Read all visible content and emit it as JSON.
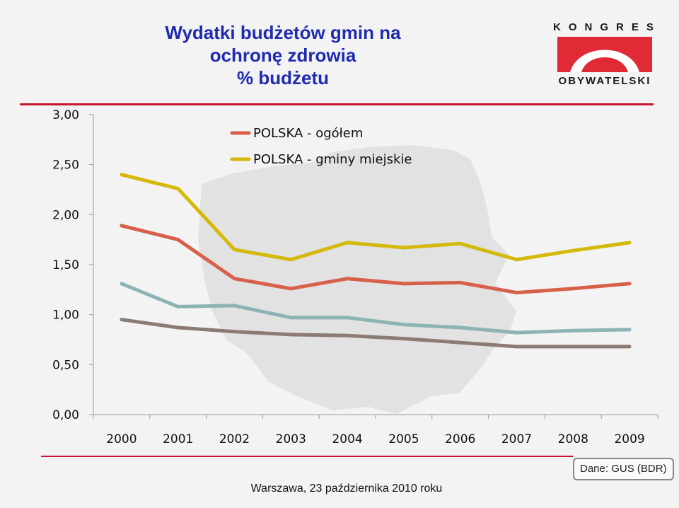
{
  "slide": {
    "title_lines": [
      "Wydatki budżetów gmin na",
      "ochronę zdrowia",
      "% budżetu"
    ],
    "logo": {
      "top_text": "KONGRES",
      "bottom_text": "OBYWATELSKI"
    },
    "source": "Dane: GUS (BDR)",
    "footer": "Warszawa, 23 października 2010 roku"
  },
  "colors": {
    "title": "#1f2bb0",
    "rule": "#c8172c",
    "logo_red": "#e02a36"
  },
  "chart_data": {
    "type": "line",
    "title": "Wydatki budżetów gmin na ochronę zdrowia % budżetu",
    "x": [
      "2000",
      "2001",
      "2002",
      "2003",
      "2004",
      "2005",
      "2006",
      "2007",
      "2008",
      "2009"
    ],
    "ylim": [
      0,
      3
    ],
    "yticks": [
      "0,00",
      "0,50",
      "1,00",
      "1,50",
      "2,00",
      "2,50",
      "3,00"
    ],
    "ytick_values": [
      0,
      0.5,
      1,
      1.5,
      2,
      2.5,
      3
    ],
    "xlabel": "",
    "ylabel": "",
    "legend_position": "top",
    "series": [
      {
        "name": "POLSKA - ogółem",
        "color": "#d7604a",
        "in_legend": true,
        "values": [
          1.89,
          1.75,
          1.36,
          1.26,
          1.36,
          1.31,
          1.32,
          1.22,
          1.26,
          1.31
        ]
      },
      {
        "name": "POLSKA - gminy miejskie",
        "color": "#d4b90b",
        "in_legend": true,
        "values": [
          2.4,
          2.26,
          1.65,
          1.55,
          1.72,
          1.67,
          1.71,
          1.55,
          1.64,
          1.72
        ]
      },
      {
        "color": "#8eb3b4",
        "in_legend": false,
        "values": [
          1.31,
          1.08,
          1.09,
          0.97,
          0.97,
          0.9,
          0.87,
          0.82,
          0.84,
          0.85
        ]
      },
      {
        "color": "#8c7b72",
        "in_legend": false,
        "values": [
          0.95,
          0.87,
          0.83,
          0.8,
          0.79,
          0.76,
          0.72,
          0.68,
          0.68,
          0.68
        ]
      }
    ]
  }
}
